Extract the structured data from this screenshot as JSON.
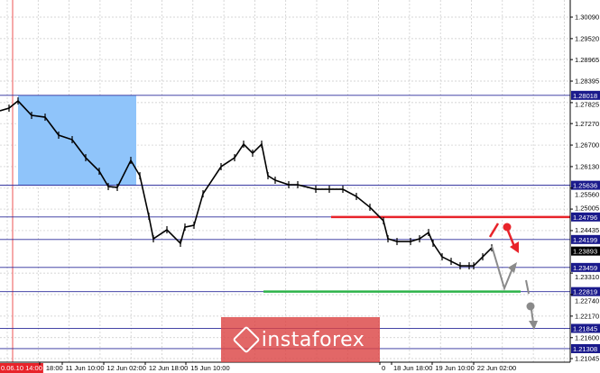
{
  "chart_data": {
    "type": "candlestick-line",
    "instrument_view": "forex price chart",
    "y_axis": {
      "ylim": [
        1.21045,
        1.3009
      ],
      "tick_labels": [
        "1.30090",
        "1.29520",
        "1.28965",
        "1.28395",
        "1.27825",
        "1.27270",
        "1.26700",
        "1.26130",
        "1.25560",
        "1.25005",
        "1.24435",
        "1.23310",
        "1.22740",
        "1.22170",
        "1.21600",
        "1.21045"
      ]
    },
    "x_axis": {
      "tick_labels": [
        "0.06.10 14:00",
        "18:00",
        "11 Jun 10:00",
        "12 Jun 02:00",
        "12 Jun 18:00",
        "15 Jun 10:00",
        "0",
        "18 Jun 18:00",
        "19 Jun 10:00",
        "22 Jun 02:00"
      ],
      "highlighted_label": "0.06.10 14:00"
    },
    "close_prices": [
      1.27608,
      1.27679,
      1.2787,
      1.27488,
      1.2744,
      1.26963,
      1.26844,
      1.26366,
      1.26008,
      1.25602,
      1.25579,
      1.26295,
      1.25889,
      1.24815,
      1.24218,
      1.24457,
      1.24099,
      1.24528,
      1.24576,
      1.25411,
      1.26128,
      1.26366,
      1.26724,
      1.26486,
      1.26724,
      1.25889,
      1.2577,
      1.2565,
      1.2565,
      1.25531,
      1.25531,
      1.25531,
      1.2534,
      1.25053,
      1.24695,
      1.24218,
      1.24146,
      1.24146,
      1.24218,
      1.24385,
      1.24099,
      1.23741,
      1.23621,
      1.23502,
      1.23502,
      1.23502,
      1.23741,
      1.23979
    ],
    "levels": [
      {
        "price": "1.28018",
        "value": 1.28018,
        "color": "#2a2a9a"
      },
      {
        "price": "1.25636",
        "value": 1.25636,
        "color": "#2a2a9a"
      },
      {
        "price": "1.24796",
        "value": 1.24796,
        "color": "#2a2a9a"
      },
      {
        "price": "1.24199",
        "value": 1.24199,
        "color": "#2a2a9a"
      },
      {
        "price": "1.23459",
        "value": 1.23459,
        "color": "#2a2a9a"
      },
      {
        "price": "1.22819",
        "value": 1.22819,
        "color": "#2a2a9a"
      },
      {
        "price": "1.21845",
        "value": 1.21845,
        "color": "#2a2a9a"
      },
      {
        "price": "1.21308",
        "value": 1.21308,
        "color": "#2a2a9a"
      }
    ],
    "current_price": {
      "price": "1.23893",
      "value": 1.23893
    },
    "resistance_level": {
      "value": 1.24796,
      "color": "#e8232a"
    },
    "support_level": {
      "value": 1.22819,
      "color": "#2db34a"
    },
    "zone": {
      "top": 1.28018,
      "bottom": 1.25636,
      "color": "#8fc4fa"
    },
    "grid": true
  },
  "watermark": {
    "text": "instaforex"
  }
}
